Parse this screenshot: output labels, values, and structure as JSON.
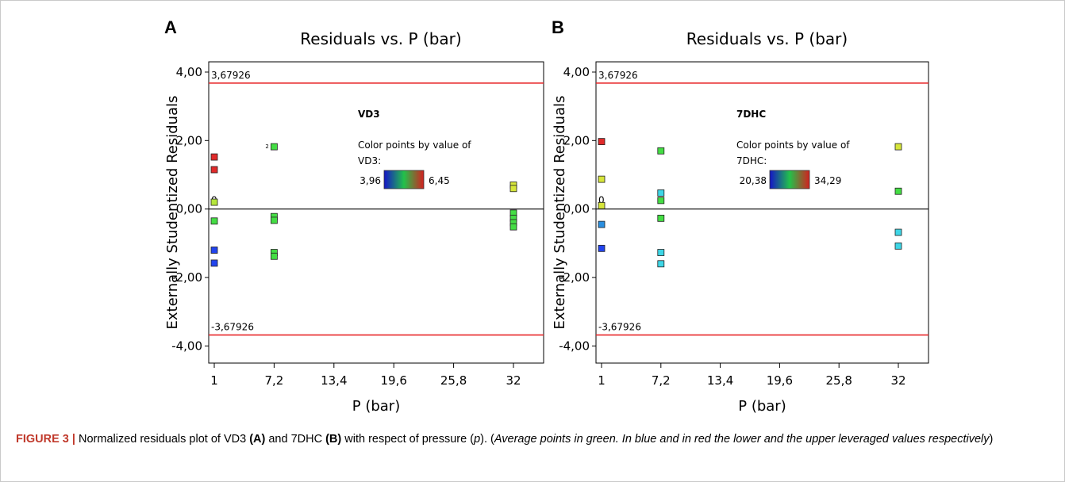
{
  "chart_data": [
    {
      "type": "scatter",
      "panel_label": "A",
      "title": "Residuals vs. P (bar)",
      "xlabel": "P (bar)",
      "ylabel": "Externally Studentized Residuals",
      "xlim": [
        1,
        32
      ],
      "ylim": [
        -4.5,
        4.3
      ],
      "xticks": [
        "1",
        "7,2",
        "13,4",
        "19,6",
        "25,8",
        "32"
      ],
      "yticks": [
        "4,00",
        "2,00",
        "0,00",
        "-2,00",
        "-4,00"
      ],
      "limit_upper": 3.67926,
      "limit_lower": -3.67926,
      "limit_upper_label": "3,67926",
      "limit_lower_label": "-3,67926",
      "zero_label": "0",
      "legend_title": "VD3",
      "color_text": "Color points by value of VD3:",
      "color_min": "3,96",
      "color_max": "6,45",
      "points": [
        {
          "x": 1,
          "y": 1.52,
          "color": "#e02a2a"
        },
        {
          "x": 1,
          "y": 1.15,
          "color": "#e02a2a"
        },
        {
          "x": 1,
          "y": 0.2,
          "color": "#b5e63c"
        },
        {
          "x": 1,
          "y": -0.35,
          "color": "#44dd44"
        },
        {
          "x": 1,
          "y": -1.2,
          "color": "#2244ee"
        },
        {
          "x": 1,
          "y": -1.58,
          "color": "#2244ee"
        },
        {
          "x": 7.2,
          "y": 1.82,
          "color": "#44dd44",
          "label": "2"
        },
        {
          "x": 7.2,
          "y": -0.22,
          "color": "#44dd44"
        },
        {
          "x": 7.2,
          "y": -0.33,
          "color": "#44dd44"
        },
        {
          "x": 7.2,
          "y": -1.27,
          "color": "#44dd44"
        },
        {
          "x": 7.2,
          "y": -1.38,
          "color": "#44dd44"
        },
        {
          "x": 32,
          "y": 0.7,
          "color": "#d6e53a"
        },
        {
          "x": 32,
          "y": 0.6,
          "color": "#d6e53a"
        },
        {
          "x": 32,
          "y": -0.12,
          "color": "#44dd44"
        },
        {
          "x": 32,
          "y": -0.27,
          "color": "#44dd44"
        },
        {
          "x": 32,
          "y": -0.4,
          "color": "#44dd44"
        },
        {
          "x": 32,
          "y": -0.52,
          "color": "#44dd44"
        }
      ]
    },
    {
      "type": "scatter",
      "panel_label": "B",
      "title": "Residuals vs. P (bar)",
      "xlabel": "P (bar)",
      "ylabel": "Externally Studentized Residuals",
      "xlim": [
        1,
        32
      ],
      "ylim": [
        -4.5,
        4.3
      ],
      "xticks": [
        "1",
        "7,2",
        "13,4",
        "19,6",
        "25,8",
        "32"
      ],
      "yticks": [
        "4,00",
        "2,00",
        "0,00",
        "-2,00",
        "-4,00"
      ],
      "limit_upper": 3.67926,
      "limit_lower": -3.67926,
      "limit_upper_label": "3,67926",
      "limit_lower_label": "-3,67926",
      "zero_label": "0",
      "legend_title": "7DHC",
      "color_text": "Color points by value of 7DHC:",
      "color_min": "20,38",
      "color_max": "34,29",
      "points": [
        {
          "x": 1,
          "y": 1.97,
          "color": "#e02a2a"
        },
        {
          "x": 1,
          "y": 0.87,
          "color": "#d6e53a"
        },
        {
          "x": 1,
          "y": 0.1,
          "color": "#d6e53a"
        },
        {
          "x": 1,
          "y": -0.45,
          "color": "#2a8fe0"
        },
        {
          "x": 1,
          "y": -1.15,
          "color": "#2244ee"
        },
        {
          "x": 7.2,
          "y": 1.7,
          "color": "#44dd44"
        },
        {
          "x": 7.2,
          "y": 0.47,
          "color": "#3ed6e6"
        },
        {
          "x": 7.2,
          "y": 0.25,
          "color": "#44dd44"
        },
        {
          "x": 7.2,
          "y": -0.27,
          "color": "#44dd44"
        },
        {
          "x": 7.2,
          "y": -1.27,
          "color": "#3ed6e6"
        },
        {
          "x": 7.2,
          "y": -1.6,
          "color": "#3ed6e6"
        },
        {
          "x": 32,
          "y": 1.82,
          "color": "#d6e53a"
        },
        {
          "x": 32,
          "y": 0.52,
          "color": "#44dd44"
        },
        {
          "x": 32,
          "y": -0.68,
          "color": "#3ed6e6"
        },
        {
          "x": 32,
          "y": -1.08,
          "color": "#3ed6e6"
        }
      ]
    }
  ],
  "caption": {
    "label": "FIGURE 3 |",
    "part1": " Normalized residuals plot of VD3 ",
    "ref_a": "(A)",
    "part2": " and 7DHC ",
    "ref_b": "(B)",
    "part3": " with respect of pressure (",
    "p": "p",
    "part4": "). (",
    "italic": "Average points in green. In blue and in red the lower and the upper leveraged values respectively",
    "part5": ")"
  },
  "colors": {
    "limit_line": "#e8282a",
    "gradient": [
      "#1515c8",
      "#22c14a",
      "#d42020"
    ]
  }
}
